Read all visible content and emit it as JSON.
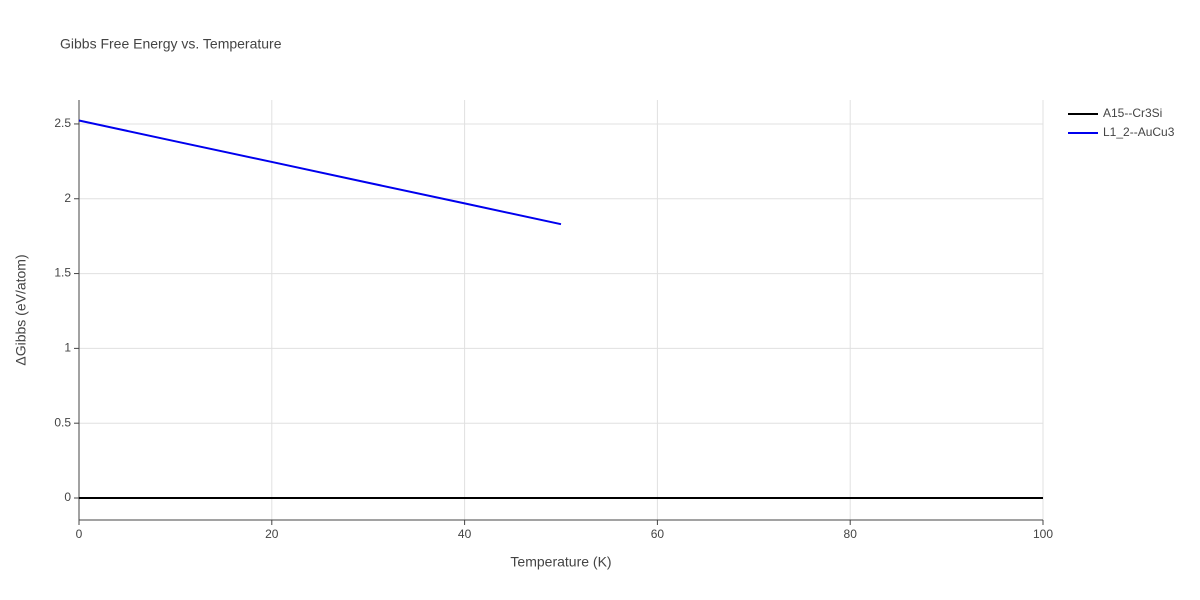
{
  "chart_data": {
    "type": "line",
    "title": "Gibbs Free Energy vs. Temperature",
    "x_label": "Temperature (K)",
    "y_label": "ΔGibbs (eV/atom)",
    "series": [
      {
        "name": "A15--Cr3Si",
        "color": "#000000",
        "x": [
          0,
          100
        ],
        "values": [
          0,
          0
        ]
      },
      {
        "name": "L1_2--AuCu3",
        "color": "#0000ee",
        "x": [
          0,
          10,
          20,
          30,
          40,
          50
        ],
        "values": [
          2.523,
          2.384,
          2.246,
          2.107,
          1.969,
          1.83
        ]
      }
    ],
    "xlim": [
      0,
      100
    ],
    "xticks": [
      0,
      20,
      40,
      60,
      80,
      100
    ],
    "ylim": [
      -0.147,
      2.66
    ],
    "yticks": [
      0,
      {
        "value": 0.5,
        "label": "0.5"
      },
      1,
      {
        "value": 1.5,
        "label": "1.5"
      },
      2,
      {
        "value": 2.5,
        "label": "2.5"
      }
    ],
    "grid": true,
    "legend": "right"
  }
}
